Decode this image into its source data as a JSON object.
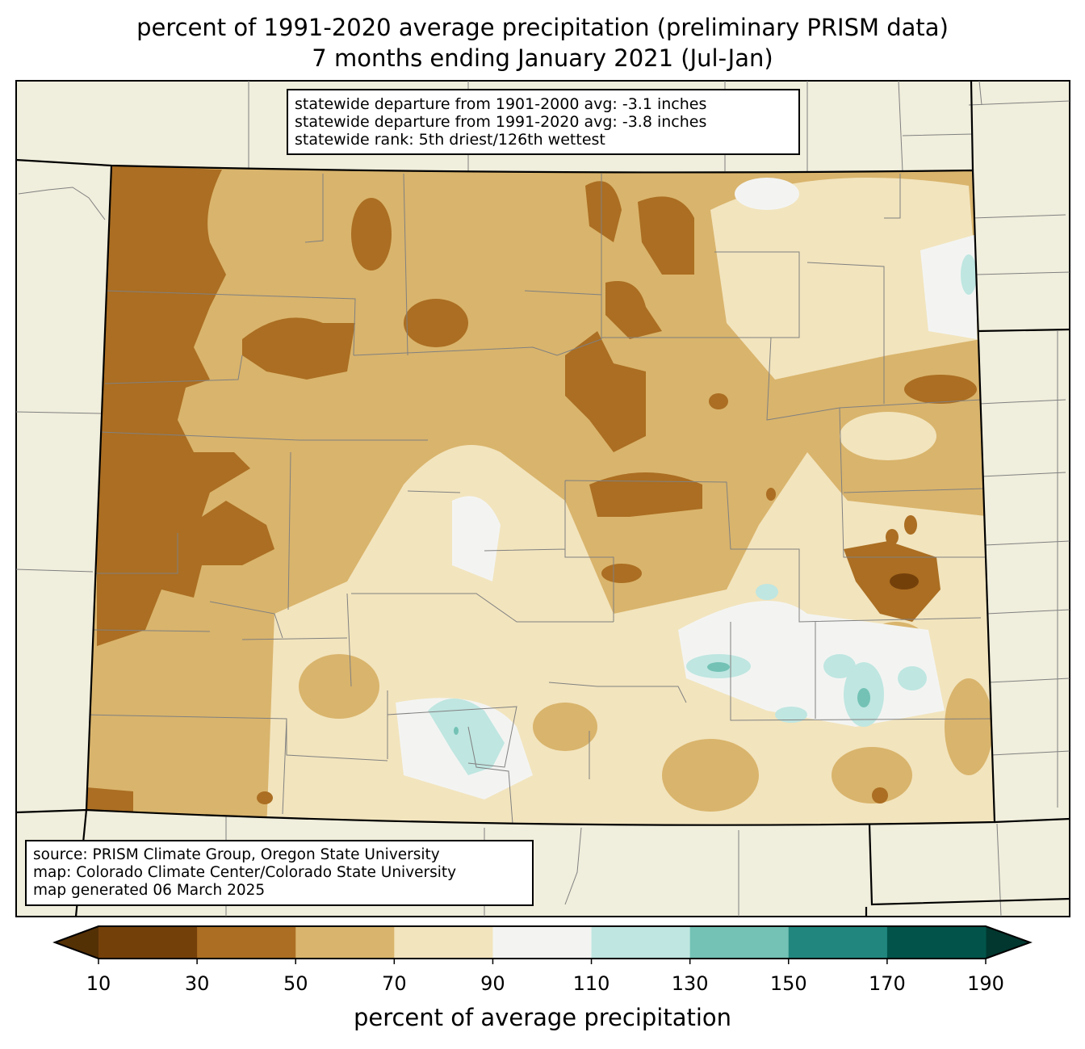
{
  "title": {
    "line1": "percent of 1991-2020 average precipitation (preliminary PRISM data)",
    "line2": "7 months ending January 2021 (Jul-Jan)"
  },
  "stats": {
    "line1": "statewide departure from 1901-2000 avg: -3.1 inches",
    "line2": "statewide departure from 1991-2020 avg: -3.8 inches",
    "line3": "statewide rank: 5th driest/126th wettest"
  },
  "credits": {
    "line1": "source: PRISM Climate Group, Oregon State University",
    "line2": "map: Colorado Climate Center/Colorado State University",
    "line3": "map generated 06 March 2025"
  },
  "colorbar": {
    "label": "percent of average precipitation",
    "ticks": [
      "10",
      "30",
      "50",
      "70",
      "90",
      "110",
      "130",
      "150",
      "170",
      "190"
    ],
    "under_color": "#543005",
    "over_color": "#01372f",
    "colors": [
      "#74400a",
      "#ab6e22",
      "#d9b46c",
      "#f2e4bd",
      "#f3f4f2",
      "#bfe6e1",
      "#73c2b5",
      "#21877e",
      "#02544a"
    ]
  },
  "map_colors": {
    "background": "#f0eedc",
    "county_lines": "#808080"
  }
}
